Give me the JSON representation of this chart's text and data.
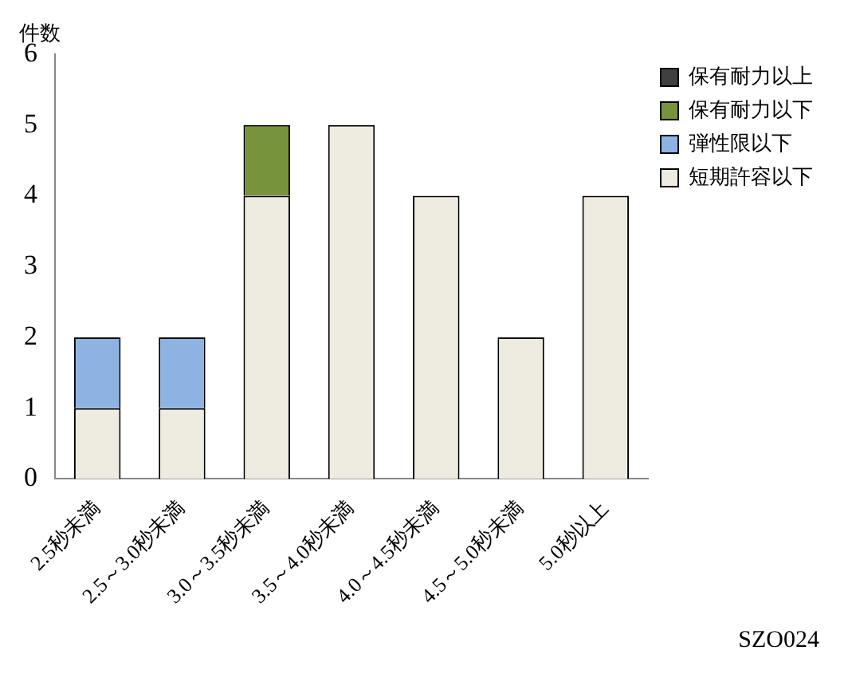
{
  "chart_data": {
    "type": "bar",
    "ylabel": "件数",
    "stacked": true,
    "categories": [
      "2.5秒未満",
      "2.5～3.0秒未満",
      "3.0～3.5秒未満",
      "3.5～4.0秒未満",
      "4.0～4.5秒未満",
      "4.5～5.0秒未満",
      "5.0秒以上"
    ],
    "series": [
      {
        "name": "短期許容以下",
        "color": "#eeece1",
        "values": [
          1,
          1,
          4,
          5,
          4,
          2,
          4
        ]
      },
      {
        "name": "弾性限以下",
        "color": "#8db3e2",
        "values": [
          1,
          1,
          0,
          0,
          0,
          0,
          0
        ]
      },
      {
        "name": "保有耐力以下",
        "color": "#77933c",
        "values": [
          0,
          0,
          1,
          0,
          0,
          0,
          0
        ]
      },
      {
        "name": "保有耐力以上",
        "color": "#404040",
        "values": [
          0,
          0,
          0,
          0,
          0,
          0,
          0
        ]
      }
    ],
    "ylim": [
      0,
      6
    ],
    "yticks": [
      0,
      1,
      2,
      3,
      4,
      5,
      6
    ],
    "grid": false,
    "legend": "top right",
    "annotations": [
      "SZO024"
    ]
  }
}
